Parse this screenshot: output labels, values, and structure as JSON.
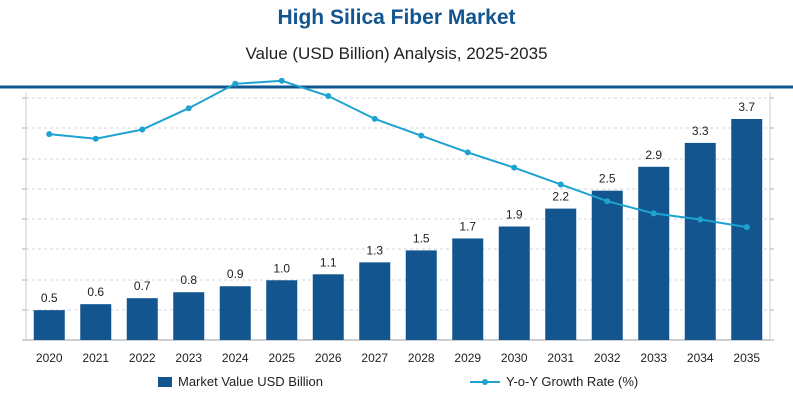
{
  "title": "High Silica Fiber Market",
  "subtitle": "Value (USD Billion) Analysis, 2025-2035",
  "colors": {
    "bar": "#12558f",
    "line": "#1ea3d1",
    "title": "#12558f",
    "axis_band": "#12558f",
    "grid": "#d0d4da"
  },
  "chart_data": {
    "type": "bar",
    "categories": [
      "2020",
      "2021",
      "2022",
      "2023",
      "2024",
      "2025",
      "2026",
      "2027",
      "2028",
      "2029",
      "2030",
      "2031",
      "2032",
      "2033",
      "2034",
      "2035"
    ],
    "series": [
      {
        "name": "Market Value USD Billion",
        "type": "bar",
        "values": [
          0.5,
          0.6,
          0.7,
          0.8,
          0.9,
          1.0,
          1.1,
          1.3,
          1.5,
          1.7,
          1.9,
          2.2,
          2.5,
          2.9,
          3.3,
          3.7
        ],
        "labels": [
          "0.5",
          "0.6",
          "0.7",
          "0.8",
          "0.9",
          "1.0",
          "1.1",
          "1.3",
          "1.5",
          "1.7",
          "1.9",
          "2.2",
          "2.5",
          "2.9",
          "3.3",
          "3.7"
        ]
      },
      {
        "name": "Y-o-Y Growth Rate (%)",
        "type": "line",
        "values": [
          13.5,
          13.2,
          13.8,
          15.2,
          16.8,
          17.0,
          16.0,
          14.5,
          13.4,
          12.3,
          11.3,
          10.2,
          9.1,
          8.3,
          7.9,
          7.4
        ]
      }
    ],
    "ylim": [
      0,
      4
    ],
    "y2lim": [
      0,
      20
    ],
    "grid": true,
    "legend": "bottom"
  },
  "legend": {
    "bar_label": "Market Value USD Billion",
    "line_label": "Y-o-Y Growth Rate (%)"
  }
}
